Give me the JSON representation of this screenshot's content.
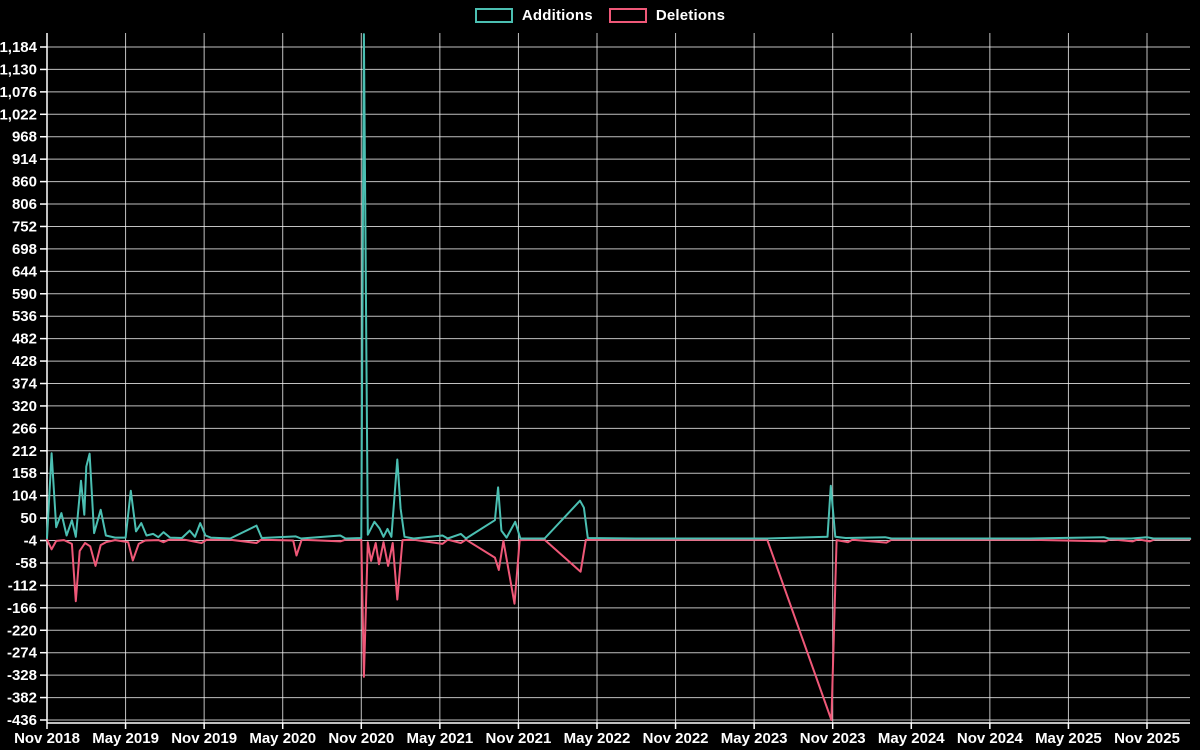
{
  "legend": {
    "items": [
      {
        "label": "Additions",
        "key": "additions"
      },
      {
        "label": "Deletions",
        "key": "deletions"
      }
    ]
  },
  "colors": {
    "background": "#000000",
    "grid": "#f2f2f2",
    "axis": "#ffffff",
    "text": "#ffffff",
    "additions": "#4bbfb2",
    "deletions": "#ef5878"
  },
  "chart_data": {
    "type": "line",
    "title": "",
    "xlabel": "",
    "ylabel": "",
    "grid": true,
    "legend_position": "top-center",
    "x_unit": "months since Nov 2018",
    "x_tick_labels": [
      "Nov 2018",
      "May 2019",
      "Nov 2019",
      "May 2020",
      "Nov 2020",
      "May 2021",
      "Nov 2021",
      "May 2022",
      "Nov 2022",
      "May 2023",
      "Nov 2023",
      "May 2024",
      "Nov 2024",
      "May 2025",
      "Nov 2025"
    ],
    "x_tick_months": [
      0,
      6,
      12,
      18,
      24,
      30,
      36,
      42,
      48,
      54,
      60,
      66,
      72,
      78,
      84
    ],
    "y_ticks": [
      1184,
      1130,
      1076,
      1022,
      968,
      914,
      860,
      806,
      752,
      698,
      644,
      590,
      536,
      482,
      428,
      374,
      320,
      266,
      212,
      158,
      104,
      50,
      -4,
      -58,
      -112,
      -166,
      -220,
      -274,
      -328,
      -382,
      -436
    ],
    "y_tick_labels": [
      "1,184",
      "1,130",
      "1,076",
      "1,022",
      "968",
      "914",
      "860",
      "806",
      "752",
      "698",
      "644",
      "590",
      "536",
      "482",
      "428",
      "374",
      "320",
      "266",
      "212",
      "158",
      "104",
      "50",
      "-4",
      "-58",
      "-112",
      "-166",
      "-220",
      "-274",
      "-328",
      "-382",
      "-436"
    ],
    "ylim": [
      -436,
      1184
    ],
    "series": [
      {
        "name": "Additions",
        "color_key": "additions",
        "points": [
          [
            0,
            2
          ],
          [
            0.35,
            206
          ],
          [
            0.7,
            28
          ],
          [
            1.1,
            62
          ],
          [
            1.5,
            8
          ],
          [
            1.9,
            45
          ],
          [
            2.2,
            5
          ],
          [
            2.6,
            140
          ],
          [
            2.85,
            58
          ],
          [
            3.0,
            174
          ],
          [
            3.25,
            205
          ],
          [
            3.6,
            14
          ],
          [
            4.1,
            70
          ],
          [
            4.5,
            8
          ],
          [
            5.2,
            3
          ],
          [
            6.0,
            3
          ],
          [
            6.4,
            116
          ],
          [
            6.8,
            18
          ],
          [
            7.2,
            38
          ],
          [
            7.6,
            8
          ],
          [
            8.1,
            12
          ],
          [
            8.5,
            4
          ],
          [
            8.9,
            16
          ],
          [
            9.4,
            3
          ],
          [
            10.3,
            2
          ],
          [
            10.9,
            20
          ],
          [
            11.3,
            5
          ],
          [
            11.7,
            38
          ],
          [
            12.1,
            8
          ],
          [
            12.5,
            3
          ],
          [
            14,
            1
          ],
          [
            16.0,
            32
          ],
          [
            16.4,
            2
          ],
          [
            19.0,
            6
          ],
          [
            19.4,
            1
          ],
          [
            22.4,
            8
          ],
          [
            22.8,
            1
          ],
          [
            24.0,
            2
          ],
          [
            24.2,
            1215
          ],
          [
            24.5,
            10
          ],
          [
            25.0,
            41
          ],
          [
            25.4,
            25
          ],
          [
            25.7,
            5
          ],
          [
            26.0,
            24
          ],
          [
            26.3,
            5
          ],
          [
            26.75,
            191
          ],
          [
            27.0,
            73
          ],
          [
            27.3,
            5
          ],
          [
            28,
            1
          ],
          [
            30.2,
            8
          ],
          [
            30.6,
            1
          ],
          [
            31.6,
            12
          ],
          [
            32.0,
            1
          ],
          [
            34.2,
            45
          ],
          [
            34.45,
            124
          ],
          [
            34.7,
            20
          ],
          [
            35.1,
            3
          ],
          [
            35.75,
            41
          ],
          [
            36.15,
            1
          ],
          [
            38,
            1
          ],
          [
            40.7,
            92
          ],
          [
            41.0,
            75
          ],
          [
            41.3,
            2
          ],
          [
            45,
            1
          ],
          [
            50,
            1
          ],
          [
            55,
            1
          ],
          [
            59.6,
            5
          ],
          [
            59.85,
            128
          ],
          [
            60.2,
            5
          ],
          [
            61.0,
            2
          ],
          [
            64.0,
            4
          ],
          [
            64.5,
            1
          ],
          [
            70,
            1
          ],
          [
            75,
            1
          ],
          [
            80.7,
            4
          ],
          [
            81.1,
            1
          ],
          [
            82.8,
            1
          ],
          [
            84.0,
            4
          ],
          [
            84.5,
            1
          ],
          [
            87.3,
            1
          ]
        ]
      },
      {
        "name": "Deletions",
        "color_key": "deletions",
        "points": [
          [
            0,
            -2
          ],
          [
            0.35,
            -25
          ],
          [
            0.7,
            -5
          ],
          [
            1.3,
            -3
          ],
          [
            1.9,
            -12
          ],
          [
            2.2,
            -150
          ],
          [
            2.5,
            -29
          ],
          [
            2.9,
            -10
          ],
          [
            3.3,
            -18
          ],
          [
            3.7,
            -65
          ],
          [
            4.1,
            -15
          ],
          [
            4.5,
            -8
          ],
          [
            5.2,
            -3
          ],
          [
            6.2,
            -8
          ],
          [
            6.55,
            -52
          ],
          [
            7.0,
            -12
          ],
          [
            7.5,
            -4
          ],
          [
            8.5,
            -3
          ],
          [
            8.9,
            -8
          ],
          [
            9.3,
            -2
          ],
          [
            10.5,
            -2
          ],
          [
            11.8,
            -10
          ],
          [
            12.2,
            -2
          ],
          [
            14,
            -2
          ],
          [
            16.0,
            -10
          ],
          [
            16.35,
            -2
          ],
          [
            18.8,
            -4
          ],
          [
            19.05,
            -40
          ],
          [
            19.45,
            -2
          ],
          [
            22.4,
            -6
          ],
          [
            22.8,
            -2
          ],
          [
            24.0,
            -2
          ],
          [
            24.2,
            -332
          ],
          [
            24.5,
            -8
          ],
          [
            24.75,
            -53
          ],
          [
            25.1,
            -10
          ],
          [
            25.35,
            -61
          ],
          [
            25.7,
            -8
          ],
          [
            26.05,
            -65
          ],
          [
            26.4,
            -10
          ],
          [
            26.75,
            -146
          ],
          [
            27.15,
            -3
          ],
          [
            28,
            -2
          ],
          [
            30.2,
            -12
          ],
          [
            30.6,
            -2
          ],
          [
            31.6,
            -10
          ],
          [
            32.0,
            -2
          ],
          [
            34.2,
            -45
          ],
          [
            34.5,
            -75
          ],
          [
            34.85,
            -5
          ],
          [
            35.7,
            -156
          ],
          [
            36.1,
            -3
          ],
          [
            38,
            -2
          ],
          [
            40.75,
            -79
          ],
          [
            41.15,
            -2
          ],
          [
            45,
            -2
          ],
          [
            50,
            -2
          ],
          [
            55,
            -2
          ],
          [
            59.9,
            -436
          ],
          [
            60.3,
            -3
          ],
          [
            61.15,
            -8
          ],
          [
            61.5,
            -2
          ],
          [
            64.1,
            -9
          ],
          [
            64.5,
            -2
          ],
          [
            70,
            -2
          ],
          [
            75,
            -2
          ],
          [
            80.8,
            -6
          ],
          [
            81.2,
            -1
          ],
          [
            82.9,
            -6
          ],
          [
            83.3,
            -1
          ],
          [
            84.2,
            -6
          ],
          [
            84.6,
            -1
          ],
          [
            87.3,
            -1
          ]
        ]
      }
    ]
  }
}
